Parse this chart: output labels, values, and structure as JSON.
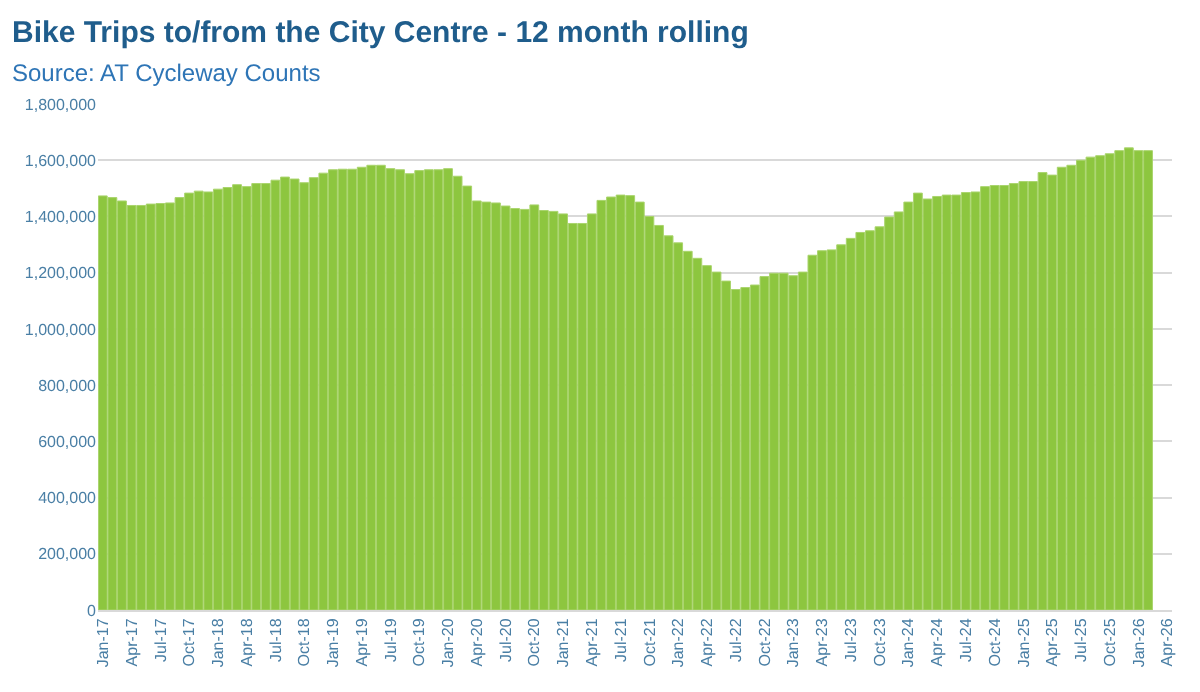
{
  "chart_data": {
    "type": "bar",
    "title": "Bike Trips to/from the City Centre - 12 month rolling",
    "subtitle": "Source: AT Cycleway Counts",
    "categories": [
      "Jan-17",
      null,
      null,
      "Apr-17",
      null,
      null,
      "Jul-17",
      null,
      null,
      "Oct-17",
      null,
      null,
      "Jan-18",
      null,
      null,
      "Apr-18",
      null,
      null,
      "Jul-18",
      null,
      null,
      "Oct-18",
      null,
      null,
      "Jan-19",
      null,
      null,
      "Apr-19",
      null,
      null,
      "Jul-19",
      null,
      null,
      "Oct-19",
      null,
      null,
      "Jan-20",
      null,
      null,
      "Apr-20",
      null,
      null,
      "Jul-20",
      null,
      null,
      "Oct-20",
      null,
      null,
      "Jan-21",
      null,
      null,
      "Apr-21",
      null,
      null,
      "Jul-21",
      null,
      null,
      "Oct-21",
      null,
      null,
      "Jan-22",
      null,
      null,
      "Apr-22",
      null,
      null,
      "Jul-22",
      null,
      null,
      "Oct-22",
      null,
      null,
      "Jan-23",
      null,
      null,
      "Apr-23",
      null,
      null,
      "Jul-23",
      null,
      null,
      "Oct-23",
      null,
      null,
      "Jan-24",
      null,
      null,
      "Apr-24",
      null,
      null,
      "Jul-24",
      null,
      null,
      "Oct-24",
      null,
      null,
      "Jan-25",
      null,
      null,
      "Apr-25",
      null,
      null,
      "Jul-25",
      null,
      null,
      "Oct-25",
      null,
      null,
      "Jan-26",
      null,
      null,
      "Apr-26"
    ],
    "values": [
      1473000,
      1467000,
      1455000,
      1439000,
      1439000,
      1444000,
      1446000,
      1448000,
      1467000,
      1483000,
      1490000,
      1487000,
      1497000,
      1503000,
      1513000,
      1506000,
      1517000,
      1517000,
      1529000,
      1540000,
      1533000,
      1520000,
      1538000,
      1554000,
      1566000,
      1568000,
      1568000,
      1575000,
      1582000,
      1582000,
      1570000,
      1566000,
      1552000,
      1563000,
      1566000,
      1566000,
      1570000,
      1543000,
      1508000,
      1455000,
      1451000,
      1448000,
      1437000,
      1428000,
      1425000,
      1441000,
      1421000,
      1418000,
      1409000,
      1375000,
      1375000,
      1409000,
      1457000,
      1469000,
      1476000,
      1474000,
      1451000,
      1400000,
      1368000,
      1331000,
      1306000,
      1276000,
      1251000,
      1225000,
      1202000,
      1170000,
      1140000,
      1147000,
      1156000,
      1186000,
      1198000,
      1198000,
      1189000,
      1202000,
      1262000,
      1278000,
      1281000,
      1299000,
      1322000,
      1343000,
      1349000,
      1363000,
      1398000,
      1416000,
      1451000,
      1483000,
      1462000,
      1471000,
      1476000,
      1476000,
      1485000,
      1487000,
      1506000,
      1510000,
      1510000,
      1517000,
      1524000,
      1524000,
      1556000,
      1547000,
      1575000,
      1582000,
      1600000,
      1611000,
      1616000,
      1623000,
      1634000,
      1644000,
      1634000,
      1634000,
      null,
      null
    ],
    "color": "#8dc63f",
    "ylim": [
      0,
      1800000
    ],
    "yticks": [
      {
        "value": 0,
        "label": "0"
      },
      {
        "value": 200000,
        "label": "200,000"
      },
      {
        "value": 400000,
        "label": "400,000"
      },
      {
        "value": 600000,
        "label": "600,000"
      },
      {
        "value": 800000,
        "label": "800,000"
      },
      {
        "value": 1000000,
        "label": "1,000,000"
      },
      {
        "value": 1200000,
        "label": "1,200,000"
      },
      {
        "value": 1400000,
        "label": "1,400,000"
      },
      {
        "value": 1600000,
        "label": "1,600,000"
      },
      {
        "value": 1800000,
        "label": "1,800,000"
      }
    ],
    "grid": "y"
  }
}
